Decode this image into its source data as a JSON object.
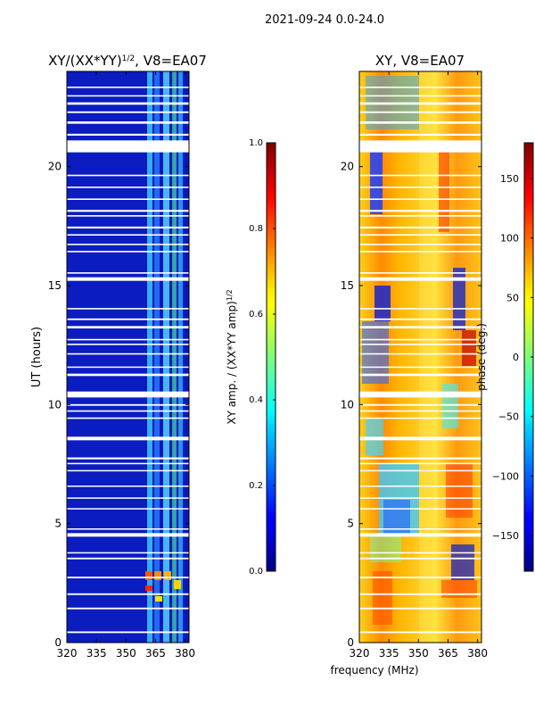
{
  "suptitle": "2021-09-24 0.0-24.0",
  "xlabel_shared": "frequency (MHz)",
  "chart_data": [
    {
      "type": "heatmap",
      "title_main": "XY/(XX*YY)",
      "title_sup": "1/2",
      "title_tail": ", V8=EA07",
      "xlabel": "",
      "ylabel": "UT (hours)",
      "xlim": [
        320,
        382
      ],
      "ylim": [
        0,
        24
      ],
      "xticks": [
        "320",
        "335",
        "350",
        "365",
        "380"
      ],
      "xtick_values": [
        320,
        335,
        350,
        365,
        380
      ],
      "yticks": [
        "0",
        "5",
        "10",
        "15",
        "20"
      ],
      "ytick_values": [
        0,
        5,
        10,
        15,
        20
      ],
      "colormap": "jet",
      "colorbar": {
        "label_main": "XY amp. / (XX*YY amp)",
        "label_sup": "1/2",
        "range": [
          0.0,
          1.0
        ],
        "ticks": [
          "0.0",
          "0.2",
          "0.4",
          "0.6",
          "0.8",
          "1.0"
        ],
        "tick_values": [
          0.0,
          0.2,
          0.4,
          0.6,
          0.8,
          1.0
        ]
      }
    },
    {
      "type": "heatmap",
      "title": "XY, V8=EA07",
      "xlabel": "frequency (MHz)",
      "ylabel": "",
      "xlim": [
        320,
        382
      ],
      "ylim": [
        0,
        24
      ],
      "xticks": [
        "320",
        "335",
        "350",
        "365",
        "380"
      ],
      "xtick_values": [
        320,
        335,
        350,
        365,
        380
      ],
      "yticks": [
        "0",
        "5",
        "10",
        "15",
        "20"
      ],
      "ytick_values": [
        0,
        5,
        10,
        15,
        20
      ],
      "colormap": "jet",
      "colorbar": {
        "label": "phase (deg.)",
        "range": [
          -180,
          180
        ],
        "ticks": [
          "−150",
          "−100",
          "−50",
          "0",
          "50",
          "100",
          "150"
        ],
        "tick_values": [
          -150,
          -100,
          -50,
          0,
          50,
          100,
          150
        ]
      }
    }
  ],
  "flagged_ut_bands": [
    [
      0.4,
      0.47
    ],
    [
      1.4,
      1.47
    ],
    [
      2.0,
      2.07
    ],
    [
      2.7,
      2.77
    ],
    [
      3.5,
      3.57
    ],
    [
      3.75,
      3.8
    ],
    [
      4.45,
      4.6
    ],
    [
      4.75,
      4.8
    ],
    [
      5.6,
      5.65
    ],
    [
      6.05,
      6.1
    ],
    [
      6.55,
      6.6
    ],
    [
      7.2,
      7.25
    ],
    [
      7.5,
      7.55
    ],
    [
      7.7,
      7.78
    ],
    [
      8.5,
      8.65
    ],
    [
      9.4,
      9.46
    ],
    [
      9.7,
      9.76
    ],
    [
      9.95,
      10.02
    ],
    [
      10.3,
      10.55
    ],
    [
      11.2,
      11.3
    ],
    [
      11.55,
      11.6
    ],
    [
      12.1,
      12.16
    ],
    [
      12.5,
      12.56
    ],
    [
      12.7,
      12.76
    ],
    [
      13.2,
      13.3
    ],
    [
      13.55,
      13.62
    ],
    [
      14.0,
      14.06
    ],
    [
      15.2,
      15.35
    ],
    [
      15.5,
      15.56
    ],
    [
      16.4,
      16.46
    ],
    [
      16.7,
      16.76
    ],
    [
      17.1,
      17.16
    ],
    [
      17.4,
      17.48
    ],
    [
      17.9,
      17.96
    ],
    [
      18.1,
      18.18
    ],
    [
      18.6,
      18.66
    ],
    [
      19.1,
      19.16
    ],
    [
      19.6,
      19.66
    ],
    [
      20.6,
      21.1
    ],
    [
      21.3,
      21.38
    ],
    [
      21.8,
      21.9
    ],
    [
      22.25,
      22.32
    ],
    [
      22.6,
      22.7
    ],
    [
      22.95,
      23.0
    ],
    [
      23.3,
      23.36
    ]
  ]
}
